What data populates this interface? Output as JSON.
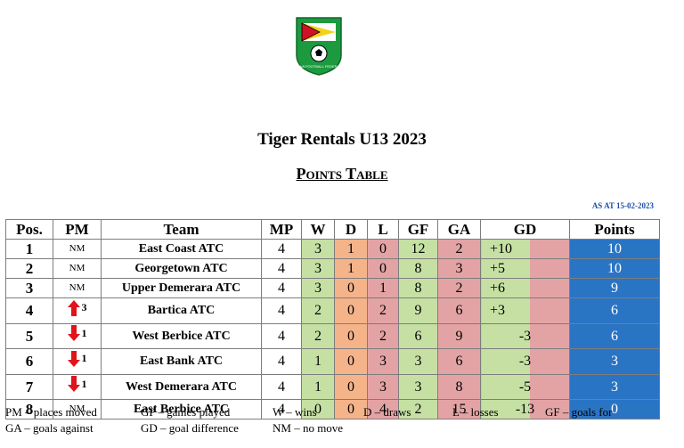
{
  "header": {
    "logo_text": "GUYANA FOOTBALL FEDERATION",
    "title": "Tiger Rentals U13 2023",
    "subtitle": "Points Table",
    "as_at": "AS AT 15-02-2023"
  },
  "table": {
    "columns": [
      "Pos.",
      "PM",
      "Team",
      "MP",
      "W",
      "D",
      "L",
      "GF",
      "GA",
      "GD",
      "Points"
    ],
    "rows": [
      {
        "pos": "1",
        "pm": "NM",
        "pm_dir": "none",
        "team": "East Coast ATC",
        "mp": "4",
        "w": "3",
        "d": "1",
        "l": "0",
        "gf": "12",
        "ga": "2",
        "gd": "+10",
        "pts": "10"
      },
      {
        "pos": "2",
        "pm": "NM",
        "pm_dir": "none",
        "team": "Georgetown ATC",
        "mp": "4",
        "w": "3",
        "d": "1",
        "l": "0",
        "gf": "8",
        "ga": "3",
        "gd": "+5",
        "pts": "10"
      },
      {
        "pos": "3",
        "pm": "NM",
        "pm_dir": "none",
        "team": "Upper Demerara ATC",
        "mp": "4",
        "w": "3",
        "d": "0",
        "l": "1",
        "gf": "8",
        "ga": "2",
        "gd": "+6",
        "pts": "9"
      },
      {
        "pos": "4",
        "pm": "3",
        "pm_dir": "up",
        "team": "Bartica ATC",
        "mp": "4",
        "w": "2",
        "d": "0",
        "l": "2",
        "gf": "9",
        "ga": "6",
        "gd": "+3",
        "pts": "6"
      },
      {
        "pos": "5",
        "pm": "1",
        "pm_dir": "down",
        "team": "West Berbice ATC",
        "mp": "4",
        "w": "2",
        "d": "0",
        "l": "2",
        "gf": "6",
        "ga": "9",
        "gd": "-3",
        "pts": "6"
      },
      {
        "pos": "6",
        "pm": "1",
        "pm_dir": "down",
        "team": "East Bank ATC",
        "mp": "4",
        "w": "1",
        "d": "0",
        "l": "3",
        "gf": "3",
        "ga": "6",
        "gd": "-3",
        "pts": "3"
      },
      {
        "pos": "7",
        "pm": "1",
        "pm_dir": "down",
        "team": "West Demerara ATC",
        "mp": "4",
        "w": "1",
        "d": "0",
        "l": "3",
        "gf": "3",
        "ga": "8",
        "gd": "-5",
        "pts": "3"
      },
      {
        "pos": "8",
        "pm": "NM",
        "pm_dir": "none",
        "team": "East Berbice ATC",
        "mp": "4",
        "w": "0",
        "d": "0",
        "l": "4",
        "gf": "2",
        "ga": "15",
        "gd": "-13",
        "pts": "0"
      }
    ]
  },
  "legend": {
    "pm": "PM – places moved",
    "gp": "GP – games played",
    "w": "W – wins",
    "d": "D – draws",
    "l": "L – losses",
    "gf": "GF – goals for",
    "ga": "GA – goals against",
    "gd": "GD – goal difference",
    "nm": "NM – no move"
  },
  "colors": {
    "win_green": "#c6e0a4",
    "draw_orange": "#f5b38a",
    "loss_pink": "#e3a3a5",
    "points_blue": "#2a74c4",
    "arrow_red": "#e0141b",
    "as_at_blue": "#1f4fa8"
  }
}
